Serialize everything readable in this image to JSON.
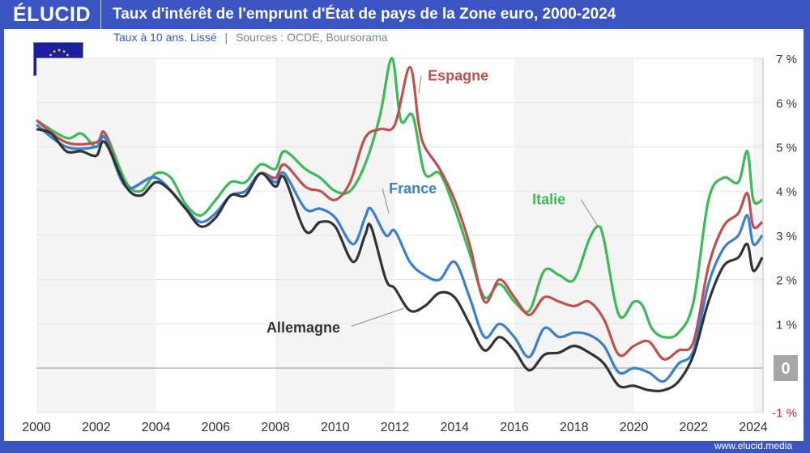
{
  "header": {
    "logo": "ÉLUCID",
    "title": "Taux d'intérêt de l'emprunt d'État de pays de la Zone euro, 2000-2024"
  },
  "subtitle": {
    "main": "Taux à 10 ans. Lissé",
    "sep": "|",
    "sources": "Sources : OCDE, Boursorama"
  },
  "footer": {
    "url": "www.elucid.media"
  },
  "chart_data": {
    "type": "line",
    "title": "Taux d'intérêt de l'emprunt d'État de pays de la Zone euro, 2000-2024",
    "xlim": [
      2000,
      2024.3
    ],
    "ylim": [
      -1,
      7
    ],
    "xticks": [
      2000,
      2002,
      2004,
      2006,
      2008,
      2010,
      2012,
      2014,
      2016,
      2018,
      2020,
      2022,
      2024
    ],
    "yticks": [
      {
        "v": 7,
        "l": "7 %"
      },
      {
        "v": 6,
        "l": "6 %"
      },
      {
        "v": 5,
        "l": "5 %"
      },
      {
        "v": 4,
        "l": "4 %"
      },
      {
        "v": 3,
        "l": "3 %"
      },
      {
        "v": 2,
        "l": "2 %"
      },
      {
        "v": 1,
        "l": "1 %"
      },
      {
        "v": 0,
        "l": "0"
      },
      {
        "v": -1,
        "l": "-1 %"
      }
    ],
    "series": [
      {
        "name": "Italie",
        "color": "#3cb95a",
        "label_at": [
          2018.8,
          3.2
        ],
        "label_pos": [
          2016.6,
          3.7
        ],
        "points": [
          [
            2000,
            5.6
          ],
          [
            2001,
            5.2
          ],
          [
            2001.5,
            5.3
          ],
          [
            2002,
            5.0
          ],
          [
            2002.3,
            5.3
          ],
          [
            2003,
            4.2
          ],
          [
            2003.5,
            4.0
          ],
          [
            2004,
            4.4
          ],
          [
            2004.5,
            4.3
          ],
          [
            2005,
            3.7
          ],
          [
            2005.5,
            3.45
          ],
          [
            2006,
            3.8
          ],
          [
            2006.5,
            4.2
          ],
          [
            2007,
            4.2
          ],
          [
            2007.5,
            4.6
          ],
          [
            2008,
            4.5
          ],
          [
            2008.3,
            4.9
          ],
          [
            2009,
            4.5
          ],
          [
            2009.5,
            4.3
          ],
          [
            2010,
            4.0
          ],
          [
            2010.5,
            4.0
          ],
          [
            2011,
            4.6
          ],
          [
            2011.5,
            5.7
          ],
          [
            2011.9,
            7.0
          ],
          [
            2012.2,
            5.6
          ],
          [
            2012.6,
            5.7
          ],
          [
            2013,
            4.4
          ],
          [
            2013.5,
            4.4
          ],
          [
            2014,
            3.6
          ],
          [
            2014.5,
            2.6
          ],
          [
            2015,
            1.6
          ],
          [
            2015.5,
            1.9
          ],
          [
            2016,
            1.5
          ],
          [
            2016.5,
            1.3
          ],
          [
            2017,
            2.2
          ],
          [
            2017.5,
            2.1
          ],
          [
            2018,
            2.0
          ],
          [
            2018.5,
            2.9
          ],
          [
            2018.8,
            3.2
          ],
          [
            2019,
            2.9
          ],
          [
            2019.5,
            1.2
          ],
          [
            2020,
            1.5
          ],
          [
            2020.3,
            1.4
          ],
          [
            2020.6,
            0.9
          ],
          [
            2021,
            0.7
          ],
          [
            2021.5,
            0.8
          ],
          [
            2022,
            1.5
          ],
          [
            2022.5,
            3.8
          ],
          [
            2023,
            4.3
          ],
          [
            2023.5,
            4.2
          ],
          [
            2023.8,
            4.9
          ],
          [
            2024,
            3.8
          ],
          [
            2024.3,
            3.8
          ]
        ]
      },
      {
        "name": "Espagne",
        "color": "#c0504d",
        "label_at": [
          2012.8,
          6.2
        ],
        "label_pos": [
          2013.1,
          6.5
        ],
        "points": [
          [
            2000,
            5.6
          ],
          [
            2001,
            5.1
          ],
          [
            2002,
            5.1
          ],
          [
            2002.3,
            5.3
          ],
          [
            2003,
            4.1
          ],
          [
            2004,
            4.3
          ],
          [
            2005,
            3.6
          ],
          [
            2005.5,
            3.3
          ],
          [
            2006,
            3.5
          ],
          [
            2006.5,
            3.9
          ],
          [
            2007,
            4.0
          ],
          [
            2007.5,
            4.4
          ],
          [
            2008,
            4.3
          ],
          [
            2008.3,
            4.6
          ],
          [
            2009,
            4.1
          ],
          [
            2009.5,
            4.0
          ],
          [
            2010,
            3.8
          ],
          [
            2010.5,
            4.2
          ],
          [
            2011,
            5.2
          ],
          [
            2011.5,
            5.4
          ],
          [
            2012,
            5.5
          ],
          [
            2012.5,
            6.8
          ],
          [
            2012.8,
            5.5
          ],
          [
            2013,
            5.0
          ],
          [
            2013.5,
            4.5
          ],
          [
            2014,
            3.8
          ],
          [
            2014.5,
            2.8
          ],
          [
            2015,
            1.5
          ],
          [
            2015.5,
            2.0
          ],
          [
            2016,
            1.6
          ],
          [
            2016.5,
            1.2
          ],
          [
            2017,
            1.6
          ],
          [
            2017.5,
            1.5
          ],
          [
            2018,
            1.4
          ],
          [
            2018.5,
            1.5
          ],
          [
            2019,
            1.1
          ],
          [
            2019.5,
            0.3
          ],
          [
            2020,
            0.5
          ],
          [
            2020.5,
            0.6
          ],
          [
            2021,
            0.2
          ],
          [
            2021.5,
            0.4
          ],
          [
            2022,
            0.6
          ],
          [
            2022.5,
            2.3
          ],
          [
            2023,
            3.2
          ],
          [
            2023.5,
            3.5
          ],
          [
            2023.8,
            3.95
          ],
          [
            2024,
            3.2
          ],
          [
            2024.3,
            3.3
          ]
        ]
      },
      {
        "name": "France",
        "color": "#3a7fd0",
        "label_at": [
          2011.8,
          3.5
        ],
        "label_pos": [
          2011.8,
          3.95
        ],
        "points": [
          [
            2000,
            5.5
          ],
          [
            2001,
            5.0
          ],
          [
            2002,
            5.0
          ],
          [
            2002.3,
            5.2
          ],
          [
            2003,
            4.1
          ],
          [
            2004,
            4.3
          ],
          [
            2005,
            3.6
          ],
          [
            2005.5,
            3.3
          ],
          [
            2006,
            3.5
          ],
          [
            2006.5,
            3.9
          ],
          [
            2007,
            4.0
          ],
          [
            2007.5,
            4.4
          ],
          [
            2008,
            4.2
          ],
          [
            2008.3,
            4.4
          ],
          [
            2009,
            3.6
          ],
          [
            2009.5,
            3.6
          ],
          [
            2010,
            3.4
          ],
          [
            2010.6,
            2.8
          ],
          [
            2011,
            3.4
          ],
          [
            2011.2,
            3.6
          ],
          [
            2011.7,
            3.0
          ],
          [
            2012,
            3.1
          ],
          [
            2012.5,
            2.4
          ],
          [
            2013,
            2.1
          ],
          [
            2013.5,
            2.0
          ],
          [
            2014,
            2.4
          ],
          [
            2014.5,
            1.6
          ],
          [
            2015,
            0.7
          ],
          [
            2015.5,
            1.0
          ],
          [
            2016,
            0.7
          ],
          [
            2016.5,
            0.25
          ],
          [
            2017,
            0.9
          ],
          [
            2017.5,
            0.7
          ],
          [
            2018,
            0.8
          ],
          [
            2018.5,
            0.75
          ],
          [
            2019,
            0.5
          ],
          [
            2019.5,
            -0.1
          ],
          [
            2020,
            0.0
          ],
          [
            2020.5,
            -0.1
          ],
          [
            2021,
            -0.3
          ],
          [
            2021.5,
            0.1
          ],
          [
            2022,
            0.4
          ],
          [
            2022.5,
            1.9
          ],
          [
            2023,
            2.7
          ],
          [
            2023.5,
            3.0
          ],
          [
            2023.8,
            3.45
          ],
          [
            2024,
            2.8
          ],
          [
            2024.3,
            3.0
          ]
        ]
      },
      {
        "name": "Allemagne",
        "color": "#333333",
        "label_at": [
          2012.3,
          1.35
        ],
        "label_pos": [
          2007.7,
          0.8
        ],
        "points": [
          [
            2000,
            5.4
          ],
          [
            2000.5,
            5.3
          ],
          [
            2001,
            4.9
          ],
          [
            2001.5,
            4.9
          ],
          [
            2002,
            4.8
          ],
          [
            2002.3,
            5.1
          ],
          [
            2003,
            4.1
          ],
          [
            2003.5,
            3.9
          ],
          [
            2004,
            4.2
          ],
          [
            2004.5,
            4.0
          ],
          [
            2005,
            3.6
          ],
          [
            2005.5,
            3.2
          ],
          [
            2006,
            3.4
          ],
          [
            2006.5,
            3.9
          ],
          [
            2007,
            3.9
          ],
          [
            2007.5,
            4.4
          ],
          [
            2008,
            4.1
          ],
          [
            2008.3,
            4.3
          ],
          [
            2009,
            3.1
          ],
          [
            2009.5,
            3.3
          ],
          [
            2010,
            3.2
          ],
          [
            2010.6,
            2.4
          ],
          [
            2011,
            3.0
          ],
          [
            2011.2,
            3.2
          ],
          [
            2011.7,
            2.0
          ],
          [
            2012,
            1.8
          ],
          [
            2012.5,
            1.3
          ],
          [
            2013,
            1.4
          ],
          [
            2013.5,
            1.7
          ],
          [
            2014,
            1.6
          ],
          [
            2014.5,
            1.0
          ],
          [
            2015,
            0.4
          ],
          [
            2015.5,
            0.7
          ],
          [
            2016,
            0.4
          ],
          [
            2016.5,
            -0.05
          ],
          [
            2017,
            0.3
          ],
          [
            2017.5,
            0.35
          ],
          [
            2018,
            0.5
          ],
          [
            2018.5,
            0.35
          ],
          [
            2019,
            0.1
          ],
          [
            2019.5,
            -0.4
          ],
          [
            2020,
            -0.4
          ],
          [
            2020.5,
            -0.5
          ],
          [
            2021,
            -0.5
          ],
          [
            2021.5,
            -0.3
          ],
          [
            2022,
            0.3
          ],
          [
            2022.5,
            1.5
          ],
          [
            2023,
            2.3
          ],
          [
            2023.5,
            2.5
          ],
          [
            2023.8,
            2.8
          ],
          [
            2024,
            2.2
          ],
          [
            2024.3,
            2.5
          ]
        ]
      }
    ]
  }
}
